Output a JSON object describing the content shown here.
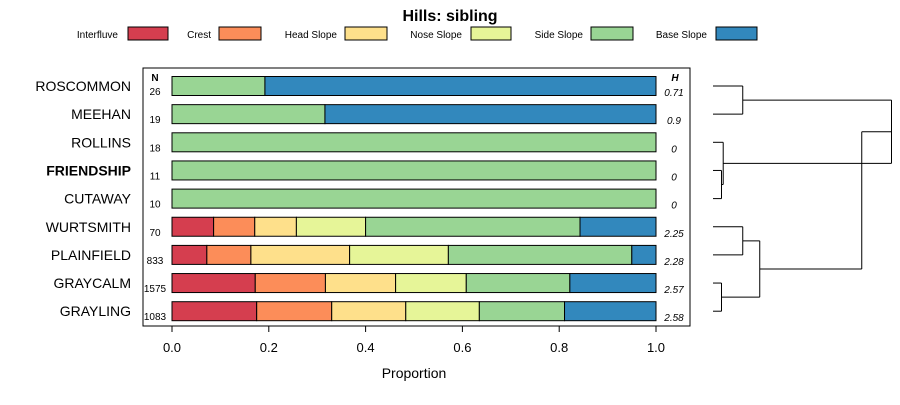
{
  "chart_data": {
    "type": "bar",
    "orientation": "horizontal",
    "stacked": true,
    "title": "Hills: sibling",
    "xlabel": "Proportion",
    "ylabel": "",
    "xlim": [
      0,
      1
    ],
    "xticks": [
      "0.0",
      "0.2",
      "0.4",
      "0.6",
      "0.8",
      "1.0"
    ],
    "n_header": "N",
    "h_header": "H",
    "highlight_category": "FRIENDSHIP",
    "legend_position": "top",
    "series": [
      {
        "name": "Interfluve",
        "color": "#d53e4f"
      },
      {
        "name": "Crest",
        "color": "#fc8d59"
      },
      {
        "name": "Head Slope",
        "color": "#fee08b"
      },
      {
        "name": "Nose Slope",
        "color": "#e6f598"
      },
      {
        "name": "Side Slope",
        "color": "#99d594"
      },
      {
        "name": "Base Slope",
        "color": "#3288bd"
      }
    ],
    "categories": [
      "ROSCOMMON",
      "MEEHAN",
      "ROLLINS",
      "FRIENDSHIP",
      "CUTAWAY",
      "WURTSMITH",
      "PLAINFIELD",
      "GRAYCALM",
      "GRAYLING"
    ],
    "n": [
      "26",
      "19",
      "18",
      "11",
      "10",
      "70",
      "833",
      "1575",
      "1083"
    ],
    "h": [
      "0.71",
      "0.9",
      "0",
      "0",
      "0",
      "2.25",
      "2.28",
      "2.57",
      "2.58"
    ],
    "values": [
      [
        0,
        0,
        0,
        0,
        0.192,
        0.808
      ],
      [
        0,
        0,
        0,
        0,
        0.316,
        0.684
      ],
      [
        0,
        0,
        0,
        0,
        1.0,
        0
      ],
      [
        0,
        0,
        0,
        0,
        1.0,
        0
      ],
      [
        0,
        0,
        0,
        0,
        1.0,
        0
      ],
      [
        0.086,
        0.085,
        0.086,
        0.143,
        0.443,
        0.157
      ],
      [
        0.072,
        0.091,
        0.204,
        0.204,
        0.379,
        0.05
      ],
      [
        0.172,
        0.145,
        0.145,
        0.146,
        0.214,
        0.178
      ],
      [
        0.175,
        0.155,
        0.153,
        0.152,
        0.176,
        0.189
      ]
    ],
    "dendrogram": {
      "leaves": [
        "ROSCOMMON",
        "MEEHAN",
        "ROLLINS",
        "FRIENDSHIP",
        "CUTAWAY",
        "WURTSMITH",
        "PLAINFIELD",
        "GRAYCALM",
        "GRAYLING"
      ],
      "merges": [
        {
          "a": "ROSCOMMON",
          "b": "MEEHAN",
          "height": 0.35
        },
        {
          "a": "FRIENDSHIP",
          "b": "CUTAWAY",
          "height": 0.1
        },
        {
          "a": "ROLLINS",
          "b": "FRIENDSHIP+CUTAWAY",
          "height": 0.12
        },
        {
          "a": "ROSCOMMON+MEEHAN",
          "b": "ROLLINS+FRIENDSHIP+CUTAWAY",
          "height": 2.1
        },
        {
          "a": "WURTSMITH",
          "b": "PLAINFIELD",
          "height": 0.35
        },
        {
          "a": "GRAYCALM",
          "b": "GRAYLING",
          "height": 0.1
        },
        {
          "a": "WURTSMITH+PLAINFIELD",
          "b": "GRAYCALM+GRAYLING",
          "height": 0.55
        },
        {
          "a": "upper",
          "b": "lower",
          "height": 1.75
        }
      ]
    }
  }
}
